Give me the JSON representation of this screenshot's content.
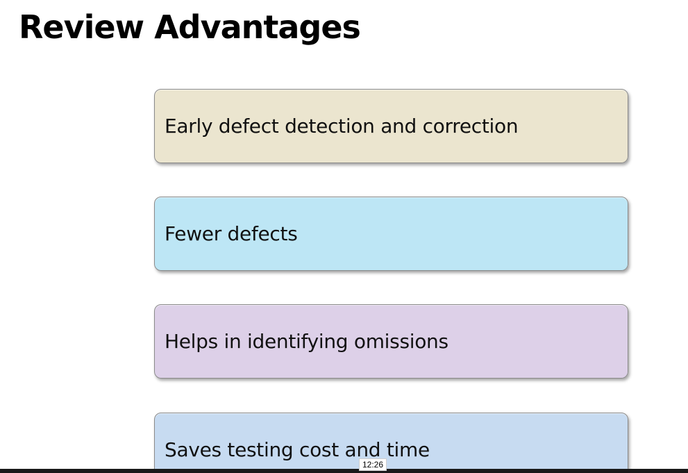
{
  "slide": {
    "title": "Review Advantages",
    "items": [
      {
        "label": "Early defect detection and correction",
        "color": "#ebe5cf"
      },
      {
        "label": "Fewer defects",
        "color": "#bde6f5"
      },
      {
        "label": "Helps in identifying omissions",
        "color": "#ddd0e8"
      },
      {
        "label": "Saves testing cost and time",
        "color": "#c7dbf1"
      }
    ]
  },
  "player": {
    "timestamp": "12:26"
  }
}
